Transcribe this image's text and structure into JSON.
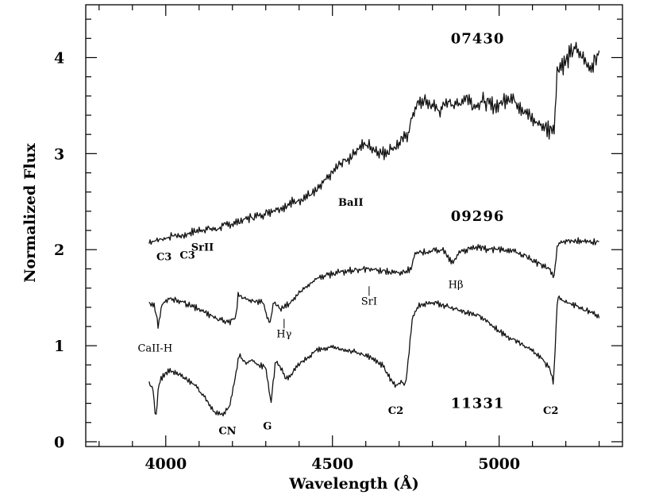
{
  "chart_data": {
    "type": "line",
    "xlabel": "Wavelength (Å)",
    "ylabel": "Normalized Flux",
    "xlim": [
      3760,
      5370
    ],
    "ylim": [
      -0.05,
      4.55
    ],
    "x_ticks": [
      4000,
      4500,
      5000
    ],
    "y_ticks": [
      0,
      1,
      2,
      3,
      4
    ],
    "x_tick_labels": [
      "4000",
      "4500",
      "5000"
    ],
    "y_tick_labels": [
      "0",
      "1",
      "2",
      "3",
      "4"
    ],
    "grid": false,
    "series": [
      {
        "name": "07430",
        "x": [
          3950,
          3975,
          4000,
          4025,
          4050,
          4075,
          4100,
          4125,
          4150,
          4175,
          4200,
          4225,
          4250,
          4275,
          4300,
          4325,
          4350,
          4375,
          4400,
          4425,
          4450,
          4475,
          4500,
          4525,
          4550,
          4575,
          4600,
          4625,
          4650,
          4675,
          4700,
          4725,
          4750,
          4775,
          4800,
          4825,
          4850,
          4875,
          4900,
          4925,
          4950,
          4975,
          5000,
          5025,
          5050,
          5075,
          5100,
          5125,
          5150,
          5165,
          5175,
          5200,
          5225,
          5250,
          5275,
          5300
        ],
        "y": [
          2.08,
          2.1,
          2.12,
          2.15,
          2.14,
          2.18,
          2.2,
          2.22,
          2.21,
          2.25,
          2.27,
          2.3,
          2.33,
          2.35,
          2.38,
          2.42,
          2.44,
          2.48,
          2.52,
          2.56,
          2.6,
          2.7,
          2.8,
          2.9,
          2.95,
          3.05,
          3.1,
          3.05,
          3.0,
          3.05,
          3.1,
          3.2,
          3.5,
          3.55,
          3.5,
          3.45,
          3.55,
          3.5,
          3.6,
          3.5,
          3.55,
          3.5,
          3.5,
          3.6,
          3.55,
          3.45,
          3.35,
          3.3,
          3.25,
          3.28,
          3.9,
          3.95,
          4.1,
          4.0,
          3.9,
          4.05
        ]
      },
      {
        "name": "09296",
        "x": [
          3950,
          3965,
          3978,
          3990,
          4010,
          4040,
          4070,
          4100,
          4130,
          4160,
          4190,
          4210,
          4218,
          4230,
          4260,
          4290,
          4300,
          4312,
          4325,
          4345,
          4370,
          4400,
          4450,
          4500,
          4550,
          4600,
          4650,
          4700,
          4735,
          4745,
          4780,
          4830,
          4861,
          4880,
          4930,
          4980,
          5030,
          5080,
          5120,
          5150,
          5165,
          5175,
          5200,
          5250,
          5300
        ],
        "y": [
          1.45,
          1.42,
          1.2,
          1.45,
          1.48,
          1.47,
          1.42,
          1.38,
          1.33,
          1.27,
          1.25,
          1.3,
          1.55,
          1.5,
          1.47,
          1.45,
          1.35,
          1.24,
          1.45,
          1.38,
          1.43,
          1.55,
          1.7,
          1.75,
          1.78,
          1.8,
          1.78,
          1.75,
          1.8,
          1.95,
          1.98,
          2.0,
          1.85,
          1.98,
          2.02,
          2.0,
          2.0,
          1.93,
          1.85,
          1.8,
          1.72,
          2.05,
          2.1,
          2.08,
          2.08
        ]
      },
      {
        "name": "11331",
        "x": [
          3950,
          3962,
          3970,
          3978,
          3990,
          4010,
          4040,
          4070,
          4100,
          4130,
          4150,
          4170,
          4190,
          4205,
          4220,
          4240,
          4260,
          4280,
          4300,
          4315,
          4330,
          4345,
          4360,
          4375,
          4400,
          4450,
          4500,
          4550,
          4600,
          4650,
          4675,
          4690,
          4705,
          4720,
          4740,
          4760,
          4800,
          4850,
          4900,
          4950,
          5000,
          5050,
          5100,
          5130,
          5150,
          5163,
          5175,
          5200,
          5225,
          5250,
          5275,
          5300
        ],
        "y": [
          0.6,
          0.55,
          0.22,
          0.58,
          0.68,
          0.74,
          0.7,
          0.64,
          0.54,
          0.4,
          0.3,
          0.28,
          0.36,
          0.6,
          0.9,
          0.82,
          0.85,
          0.8,
          0.78,
          0.4,
          0.85,
          0.78,
          0.65,
          0.7,
          0.8,
          0.95,
          0.98,
          0.95,
          0.9,
          0.8,
          0.65,
          0.58,
          0.62,
          0.6,
          1.3,
          1.42,
          1.45,
          1.4,
          1.35,
          1.3,
          1.15,
          1.05,
          0.95,
          0.85,
          0.78,
          0.6,
          1.5,
          1.45,
          1.42,
          1.38,
          1.35,
          1.3
        ]
      }
    ],
    "object_labels": [
      {
        "text": "07430",
        "x": 4855,
        "y": 4.15
      },
      {
        "text": "09296",
        "x": 4855,
        "y": 2.3
      },
      {
        "text": "11331",
        "x": 4855,
        "y": 0.35
      }
    ],
    "annotations": [
      {
        "text": "C3",
        "x": 3995,
        "y": 1.93,
        "mark": false
      },
      {
        "text": "C3",
        "x": 4065,
        "y": 1.95,
        "mark": false
      },
      {
        "text": "SrII",
        "x": 4110,
        "y": 2.03,
        "mark": false
      },
      {
        "text": "BaII",
        "x": 4555,
        "y": 2.5,
        "mark": false
      },
      {
        "text": "CaII-H",
        "x": 3968,
        "y": 0.98,
        "mark": false
      },
      {
        "text": "Hγ",
        "x": 4355,
        "y": 1.13,
        "mark": true
      },
      {
        "text": "SrI",
        "x": 4610,
        "y": 1.47,
        "mark": true
      },
      {
        "text": "Hβ",
        "x": 4870,
        "y": 1.64,
        "mark": false
      },
      {
        "text": "CN",
        "x": 4185,
        "y": 0.12,
        "mark": false
      },
      {
        "text": "G",
        "x": 4305,
        "y": 0.17,
        "mark": false
      },
      {
        "text": "C2",
        "x": 4690,
        "y": 0.33,
        "mark": false
      },
      {
        "text": "C2",
        "x": 5155,
        "y": 0.33,
        "mark": false
      }
    ]
  }
}
